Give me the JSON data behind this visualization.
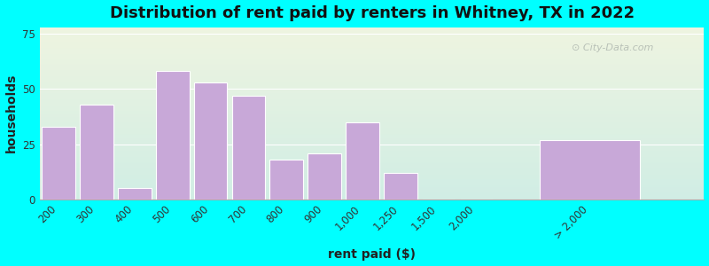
{
  "title": "Distribution of rent paid by renters in Whitney, TX in 2022",
  "xlabel": "rent paid ($)",
  "ylabel": "households",
  "categories": [
    "200",
    "300",
    "400",
    "500",
    "600",
    "700",
    "800",
    "900",
    "1,000",
    "1,250",
    "1,500",
    "2,000",
    "> 2,000"
  ],
  "values": [
    33,
    43,
    5,
    58,
    53,
    47,
    18,
    21,
    35,
    12,
    0,
    0,
    27
  ],
  "x_positions": [
    0,
    1,
    2,
    3,
    4,
    5,
    6,
    7,
    8,
    9,
    10,
    11,
    14
  ],
  "bar_widths": [
    1,
    1,
    1,
    1,
    1,
    1,
    1,
    1,
    1,
    1,
    1,
    1,
    3
  ],
  "bar_color": "#c8a8d8",
  "bar_edgecolor": "#ffffff",
  "background_outer": "#00ffff",
  "background_plot_top": "#eef4e0",
  "background_plot_bottom": "#d0ede4",
  "yticks": [
    0,
    25,
    50,
    75
  ],
  "ylim": [
    0,
    78
  ],
  "xlim": [
    -0.5,
    17
  ],
  "title_fontsize": 13,
  "axis_label_fontsize": 10,
  "tick_fontsize": 8.5,
  "watermark": "City-Data.com"
}
